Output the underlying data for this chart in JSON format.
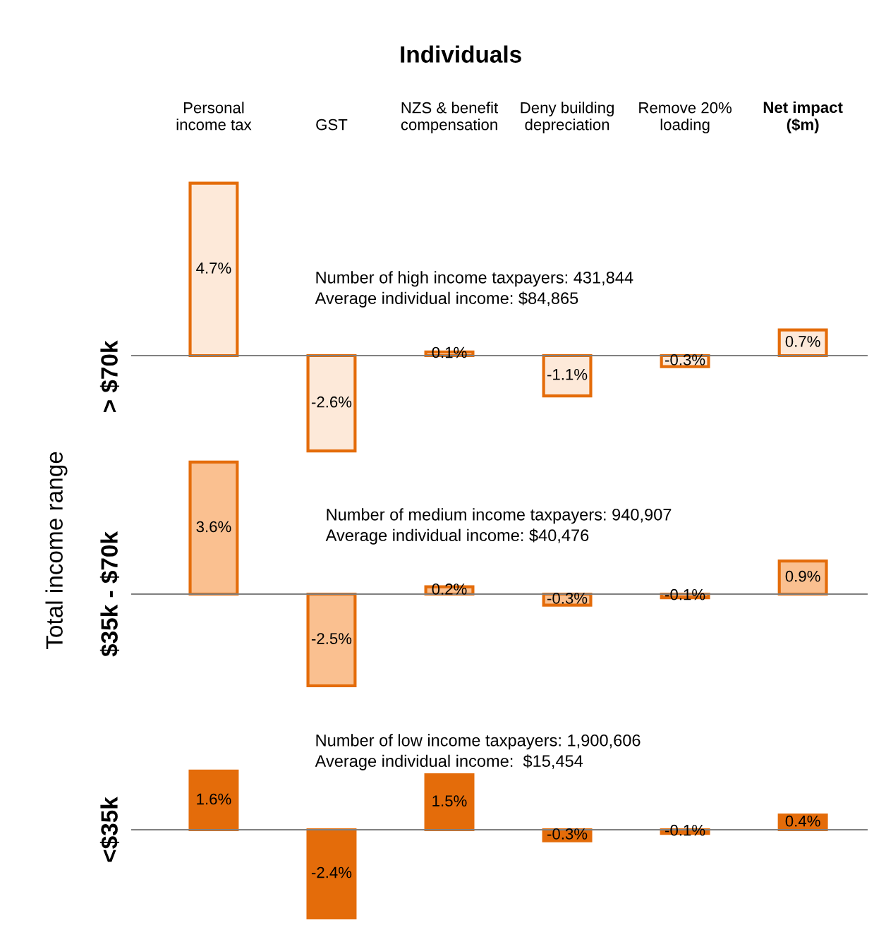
{
  "chart_data": [
    {
      "type": "bar",
      "title": "Individuals",
      "ylabel": "> $70k",
      "tick_labels": "x",
      "categories": [
        "Personal\nincome tax",
        "GST",
        "NZS & benefit\ncompensation",
        "Deny building\ndepreciation",
        "Remove 20%\nloading",
        "Net impact\n($m)"
      ],
      "series": [
        {
          "color": "#fde9d9",
          "values": [
            4.7,
            -2.6,
            0.1,
            -1.1,
            -0.3,
            0.7
          ],
          "value_labels": [
            "4.7%",
            "-2.6%",
            "0.1%",
            "-1.1%",
            "-0.3%",
            "0.7%"
          ]
        }
      ],
      "annotations": [
        "Number of high income taxpayers: 431,844\nAverage individual income: $84,865"
      ]
    },
    {
      "type": "bar",
      "ylabel": "$35k - $70k",
      "tick_labels": false,
      "categories": [
        null,
        null,
        null,
        null,
        null,
        null
      ],
      "series": [
        {
          "color": "#fac090",
          "values": [
            3.6,
            -2.5,
            0.2,
            -0.3,
            -0.1,
            0.9
          ],
          "value_labels": [
            "3.6%",
            "-2.5%",
            "0.2%",
            "-0.3%",
            "-0.1%",
            "0.9%"
          ]
        }
      ],
      "annotations": [
        "Number of medium income taxpayers: 940,907\nAverage individual income: $40,476",
        "Total income range"
      ]
    },
    {
      "type": "bar",
      "ylabel": "<$35k",
      "tick_labels": false,
      "categories": [
        null,
        null,
        null,
        null,
        null,
        null
      ],
      "series": [
        {
          "color": "#e46c0a",
          "values": [
            1.6,
            -2.4,
            1.5,
            -0.3,
            -0.1,
            0.4
          ],
          "value_labels": [
            "1.6%",
            "-2.4%",
            "1.5%",
            "-0.3%",
            "-0.1%",
            "0.4%"
          ]
        }
      ],
      "annotations": [
        "Number of low income taxpayers: 1,900,606\nAverage individual income:  $15,454"
      ]
    }
  ]
}
